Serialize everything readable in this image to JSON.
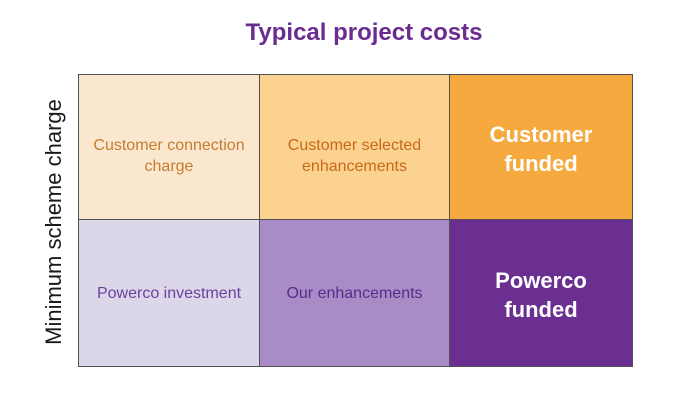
{
  "title": "Typical project costs",
  "y_axis_label": "Minimum scheme charge",
  "colors": {
    "title": "#6a2c91",
    "axis-label": "#1a1a1a",
    "grid-border": "#515151"
  },
  "matrix": {
    "rows": [
      {
        "name": "customer-funded-row",
        "cells": [
          {
            "label": "Customer connection charge",
            "bg": "#fbe7ce",
            "text_color": "#c57c31",
            "emphasis": false
          },
          {
            "label": "Customer selected enhancements",
            "bg": "#fbd28f",
            "text_color": "#c8691c",
            "emphasis": false
          },
          {
            "label": "Customer funded",
            "bg": "#f5a93f",
            "text_color": "#ffffff",
            "emphasis": true
          }
        ]
      },
      {
        "name": "powerco-funded-row",
        "cells": [
          {
            "label": "Powerco investment",
            "bg": "#dcd6e9",
            "text_color": "#6b3fa0",
            "emphasis": false
          },
          {
            "label": "Our enhancements",
            "bg": "#a98cc5",
            "text_color": "#5a2a8e",
            "emphasis": false
          },
          {
            "label": "Powerco funded",
            "bg": "#6b2e91",
            "text_color": "#ffffff",
            "emphasis": true
          }
        ]
      }
    ]
  }
}
